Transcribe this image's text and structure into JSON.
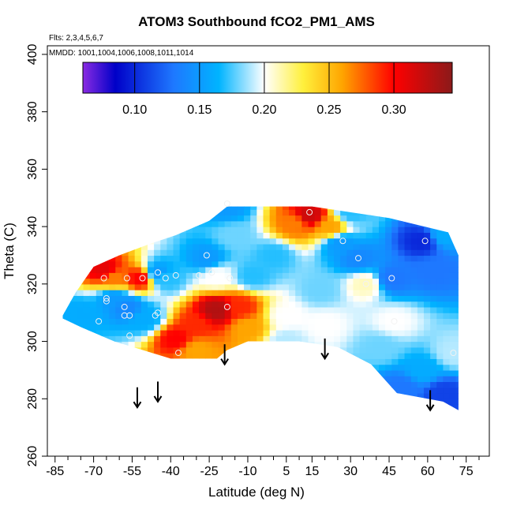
{
  "chart_data": {
    "type": "heatmap",
    "title": "ATOM3 Southbound fCO2_PM1_AMS",
    "subtitle_flights": "Flts: 2,3,4,5,6,7",
    "subtitle_dates": "MMDD: 1001,1004,1006,1008,1011,1014",
    "xlabel": "Latitude (deg N)",
    "ylabel": "Theta (C)",
    "xlim": [
      -88,
      84
    ],
    "ylim": [
      260,
      403
    ],
    "xticks": [
      -85,
      -70,
      -55,
      -40,
      -25,
      -10,
      5,
      15,
      30,
      45,
      60,
      75
    ],
    "yticks": [
      260,
      280,
      300,
      320,
      340,
      360,
      380,
      400
    ],
    "colorbar": {
      "range": [
        0.06,
        0.345
      ],
      "ticks": [
        0.1,
        0.15,
        0.2,
        0.25,
        0.3
      ],
      "tick_labels": [
        "0.10",
        "0.15",
        "0.20",
        "0.25",
        "0.30"
      ],
      "gradient_stops": [
        {
          "value": 0.06,
          "color": "#8a2be2"
        },
        {
          "value": 0.085,
          "color": "#0000c8"
        },
        {
          "value": 0.13,
          "color": "#1e78ff"
        },
        {
          "value": 0.165,
          "color": "#00b4ff"
        },
        {
          "value": 0.2,
          "color": "#ffffff"
        },
        {
          "value": 0.23,
          "color": "#fff03c"
        },
        {
          "value": 0.26,
          "color": "#ffa500"
        },
        {
          "value": 0.3,
          "color": "#ff0000"
        },
        {
          "value": 0.345,
          "color": "#8b1a1a"
        }
      ]
    },
    "domain_polygon": [
      [
        -82,
        309
      ],
      [
        -77,
        317
      ],
      [
        -70,
        326
      ],
      [
        -60,
        330
      ],
      [
        -48,
        334
      ],
      [
        -38,
        337
      ],
      [
        -25,
        342
      ],
      [
        -18,
        347
      ],
      [
        15,
        347
      ],
      [
        45,
        343
      ],
      [
        68,
        338
      ],
      [
        72,
        330
      ],
      [
        72,
        276
      ],
      [
        66,
        279
      ],
      [
        48,
        282
      ],
      [
        38,
        292
      ],
      [
        25,
        298
      ],
      [
        10,
        300
      ],
      [
        -10,
        300
      ],
      [
        -18,
        297
      ],
      [
        -22,
        294
      ],
      [
        -40,
        294
      ],
      [
        -62,
        300
      ],
      [
        -75,
        305
      ],
      [
        -82,
        308
      ]
    ],
    "field_points": [
      {
        "lat": -62,
        "theta": 322,
        "value": 0.27
      },
      {
        "lat": -66,
        "theta": 325,
        "value": 0.31
      },
      {
        "lat": -52,
        "theta": 322,
        "value": 0.3
      },
      {
        "lat": -57,
        "theta": 312,
        "value": 0.14
      },
      {
        "lat": -62,
        "theta": 315,
        "value": 0.15
      },
      {
        "lat": -75,
        "theta": 310,
        "value": 0.16
      },
      {
        "lat": -45,
        "theta": 324,
        "value": 0.15
      },
      {
        "lat": -42,
        "theta": 322,
        "value": 0.17
      },
      {
        "lat": -50,
        "theta": 308,
        "value": 0.16
      },
      {
        "lat": -38,
        "theta": 301,
        "value": 0.3
      },
      {
        "lat": -30,
        "theta": 306,
        "value": 0.29
      },
      {
        "lat": -22,
        "theta": 311,
        "value": 0.33
      },
      {
        "lat": -13,
        "theta": 312,
        "value": 0.29
      },
      {
        "lat": -30,
        "theta": 297,
        "value": 0.26
      },
      {
        "lat": -10,
        "theta": 305,
        "value": 0.26
      },
      {
        "lat": -26,
        "theta": 329,
        "value": 0.15
      },
      {
        "lat": -22,
        "theta": 323,
        "value": 0.2
      },
      {
        "lat": -8,
        "theta": 323,
        "value": 0.17
      },
      {
        "lat": -15,
        "theta": 337,
        "value": 0.18
      },
      {
        "lat": 0,
        "theta": 330,
        "value": 0.17
      },
      {
        "lat": 8,
        "theta": 341,
        "value": 0.27
      },
      {
        "lat": 14,
        "theta": 344,
        "value": 0.32
      },
      {
        "lat": 22,
        "theta": 340,
        "value": 0.26
      },
      {
        "lat": -18,
        "theta": 347,
        "value": 0.15
      },
      {
        "lat": 30,
        "theta": 345,
        "value": 0.17
      },
      {
        "lat": 26,
        "theta": 334,
        "value": 0.15
      },
      {
        "lat": 33,
        "theta": 329,
        "value": 0.14
      },
      {
        "lat": 36,
        "theta": 320,
        "value": 0.21
      },
      {
        "lat": 18,
        "theta": 318,
        "value": 0.18
      },
      {
        "lat": 5,
        "theta": 309,
        "value": 0.2
      },
      {
        "lat": 20,
        "theta": 306,
        "value": 0.2
      },
      {
        "lat": 46,
        "theta": 322,
        "value": 0.13
      },
      {
        "lat": 47,
        "theta": 307,
        "value": 0.2
      },
      {
        "lat": 42,
        "theta": 298,
        "value": 0.18
      },
      {
        "lat": 58,
        "theta": 335,
        "value": 0.1
      },
      {
        "lat": 62,
        "theta": 325,
        "value": 0.13
      },
      {
        "lat": 66,
        "theta": 337,
        "value": 0.16
      },
      {
        "lat": 70,
        "theta": 296,
        "value": 0.19
      },
      {
        "lat": 58,
        "theta": 290,
        "value": 0.16
      },
      {
        "lat": 66,
        "theta": 282,
        "value": 0.11
      },
      {
        "lat": 50,
        "theta": 284,
        "value": 0.13
      },
      {
        "lat": 5,
        "theta": 300,
        "value": 0.19
      }
    ],
    "sample_points": [
      {
        "lat": -57,
        "theta": 322
      },
      {
        "lat": -51,
        "theta": 322
      },
      {
        "lat": -45,
        "theta": 324
      },
      {
        "lat": -42,
        "theta": 322
      },
      {
        "lat": -38,
        "theta": 323
      },
      {
        "lat": -29,
        "theta": 323
      },
      {
        "lat": -26,
        "theta": 330
      },
      {
        "lat": -24,
        "theta": 324
      },
      {
        "lat": -17,
        "theta": 322
      },
      {
        "lat": -66,
        "theta": 322
      },
      {
        "lat": -65,
        "theta": 315
      },
      {
        "lat": -65,
        "theta": 314
      },
      {
        "lat": -58,
        "theta": 312
      },
      {
        "lat": -58,
        "theta": 309
      },
      {
        "lat": -56,
        "theta": 309
      },
      {
        "lat": -46,
        "theta": 309
      },
      {
        "lat": -45,
        "theta": 310
      },
      {
        "lat": -68,
        "theta": 307
      },
      {
        "lat": -56,
        "theta": 302
      },
      {
        "lat": -37,
        "theta": 296
      },
      {
        "lat": -18,
        "theta": 312
      },
      {
        "lat": 14,
        "theta": 345
      },
      {
        "lat": 27,
        "theta": 335
      },
      {
        "lat": 33,
        "theta": 329
      },
      {
        "lat": 36,
        "theta": 320
      },
      {
        "lat": 46,
        "theta": 322
      },
      {
        "lat": 47,
        "theta": 307
      },
      {
        "lat": 59,
        "theta": 335
      },
      {
        "lat": 70,
        "theta": 296
      },
      {
        "lat": -18,
        "theta": 348
      }
    ],
    "arrows_at_latitude": [
      -53,
      -45,
      -19,
      20,
      61
    ],
    "arrow_thetas": [
      283,
      285,
      298,
      300,
      282
    ]
  }
}
